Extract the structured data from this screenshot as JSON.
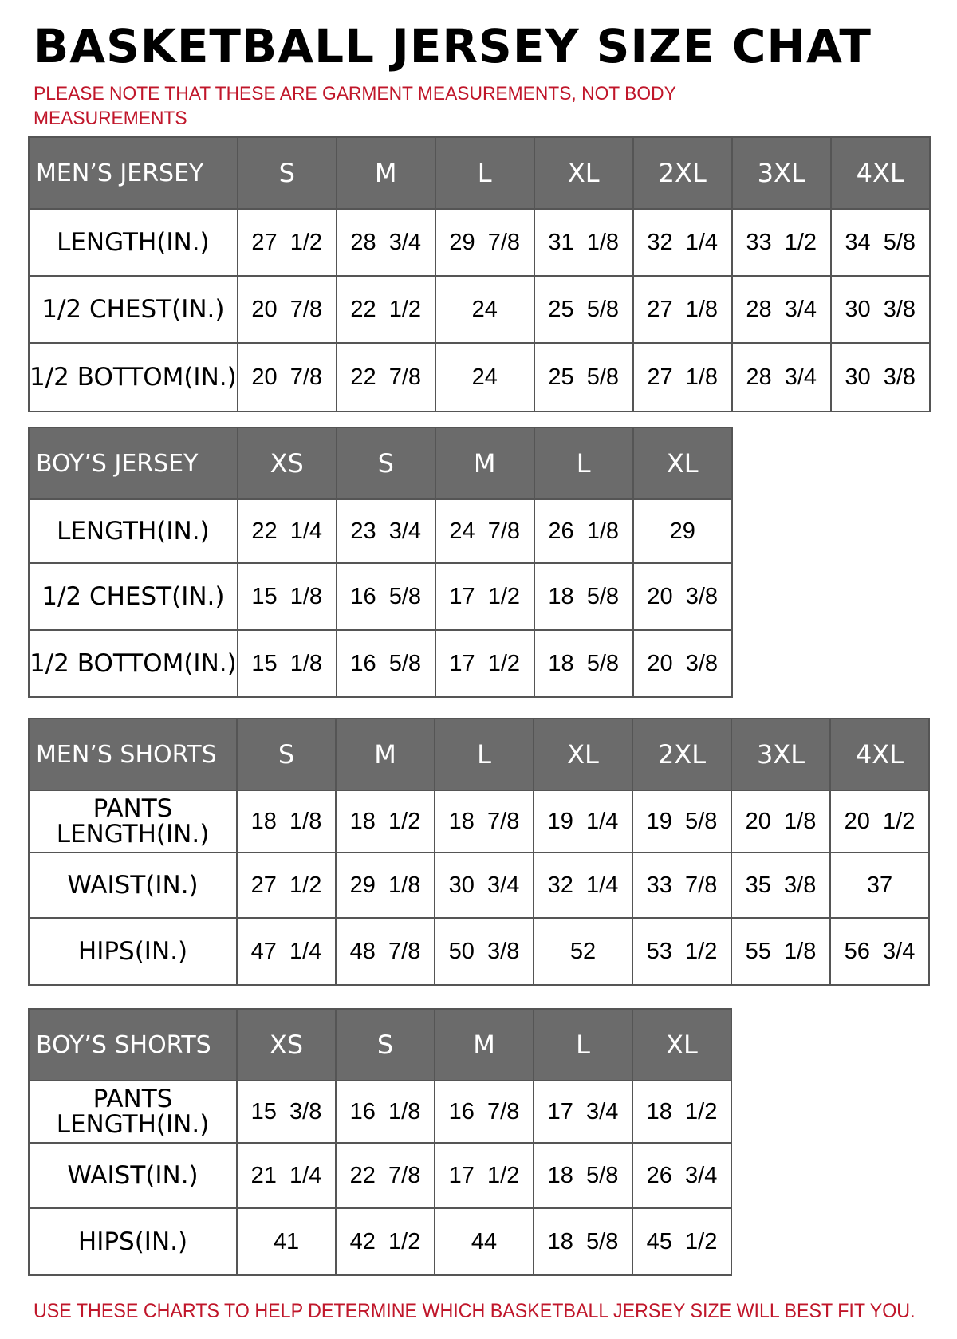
{
  "title": "BASKETBALL JERSEY SIZE CHAT",
  "note": "PLEASE NOTE THAT THESE ARE GARMENT MEASUREMENTS, NOT BODY MEASUREMENTS",
  "footer": "USE THESE CHARTS TO HELP DETERMINE WHICH BASKETBALL JERSEY SIZE WILL BEST FIT YOU.",
  "colors": {
    "header_bg": "#6b6b6b",
    "note_red": "#c0162a"
  },
  "tables": [
    {
      "name": "MEN’S JERSEY",
      "sizes": [
        "S",
        "M",
        "L",
        "XL",
        "2XL",
        "3XL",
        "4XL"
      ],
      "rows": [
        {
          "label": "LENGTH(IN.)",
          "values": [
            "27  1/2",
            "28  3/4",
            "29  7/8",
            "31  1/8",
            "32  1/4",
            "33  1/2",
            "34  5/8"
          ]
        },
        {
          "label": "1/2  CHEST(IN.)",
          "values": [
            "20  7/8",
            "22  1/2",
            "24",
            "25  5/8",
            "27  1/8",
            "28  3/4",
            "30  3/8"
          ]
        },
        {
          "label": "1/2  BOTTOM(IN.)",
          "values": [
            "20  7/8",
            "22  7/8",
            "24",
            "25  5/8",
            "27  1/8",
            "28  3/4",
            "30  3/8"
          ]
        }
      ]
    },
    {
      "name": "BOY’S JERSEY",
      "sizes": [
        "XS",
        "S",
        "M",
        "L",
        "XL"
      ],
      "rows": [
        {
          "label": "LENGTH(IN.)",
          "values": [
            "22  1/4",
            "23  3/4",
            "24  7/8",
            "26  1/8",
            "29"
          ]
        },
        {
          "label": "1/2  CHEST(IN.)",
          "values": [
            "15  1/8",
            "16  5/8",
            "17  1/2",
            "18  5/8",
            "20  3/8"
          ]
        },
        {
          "label": "1/2  BOTTOM(IN.)",
          "values": [
            "15  1/8",
            "16  5/8",
            "17  1/2",
            "18  5/8",
            "20  3/8"
          ]
        }
      ]
    },
    {
      "name": "MEN’S SHORTS",
      "sizes": [
        "S",
        "M",
        "L",
        "XL",
        "2XL",
        "3XL",
        "4XL"
      ],
      "rows": [
        {
          "label": "PANTS LENGTH(IN.)",
          "values": [
            "18  1/8",
            "18  1/2",
            "18  7/8",
            "19  1/4",
            "19  5/8",
            "20  1/8",
            "20  1/2"
          ]
        },
        {
          "label": "WAIST(IN.)",
          "values": [
            "27  1/2",
            "29  1/8",
            "30  3/4",
            "32  1/4",
            "33  7/8",
            "35  3/8",
            "37"
          ]
        },
        {
          "label": "HIPS(IN.)",
          "values": [
            "47  1/4",
            "48  7/8",
            "50  3/8",
            "52",
            "53  1/2",
            "55  1/8",
            "56  3/4"
          ]
        }
      ]
    },
    {
      "name": "BOY’S SHORTS",
      "sizes": [
        "XS",
        "S",
        "M",
        "L",
        "XL"
      ],
      "rows": [
        {
          "label": "PANTS LENGTH(IN.)",
          "values": [
            "15  3/8",
            "16  1/8",
            "16  7/8",
            "17  3/4",
            "18  1/2"
          ]
        },
        {
          "label": "WAIST(IN.)",
          "values": [
            "21  1/4",
            "22  7/8",
            "17  1/2",
            "18  5/8",
            "26  3/4"
          ]
        },
        {
          "label": "HIPS(IN.)",
          "values": [
            "41",
            "42  1/2",
            "44",
            "18  5/8",
            "45  1/2"
          ]
        }
      ]
    }
  ]
}
